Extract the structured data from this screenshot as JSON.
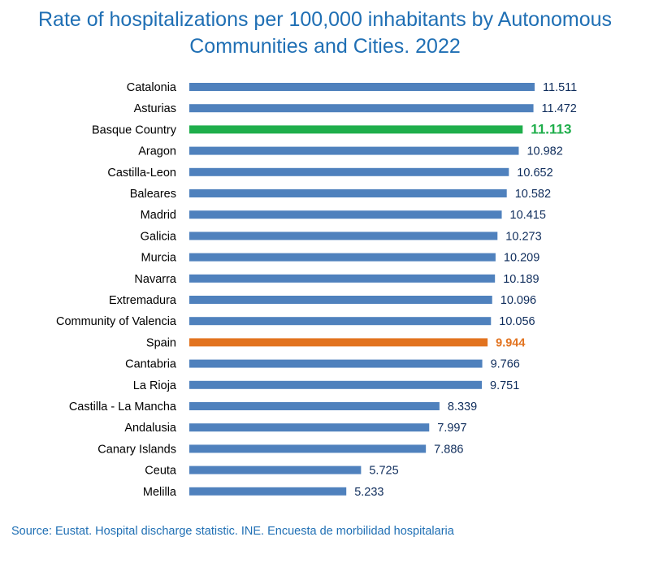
{
  "chart_data": {
    "type": "bar",
    "orientation": "horizontal",
    "title_line1": "Rate of hospitalizations per 100,000 inhabitants by Autonomous",
    "title_line2": "Communities and Cities. 2022",
    "categories": [
      "Catalonia",
      "Asturias",
      "Basque Country",
      "Aragon",
      "Castilla-Leon",
      "Baleares",
      "Madrid",
      "Galicia",
      "Murcia",
      "Navarra",
      "Extremadura",
      "Community of Valencia",
      "Spain",
      "Cantabria",
      "La Rioja",
      "Castilla - La Mancha",
      "Andalusia",
      "Canary Islands",
      "Ceuta",
      "Melilla"
    ],
    "values": [
      11511,
      11472,
      11113,
      10982,
      10652,
      10582,
      10415,
      10273,
      10209,
      10189,
      10096,
      10056,
      9944,
      9766,
      9751,
      8339,
      7997,
      7886,
      5725,
      5233
    ],
    "value_labels": [
      "11.511",
      "11.472",
      "11.113",
      "10.982",
      "10.652",
      "10.582",
      "10.415",
      "10.273",
      "10.209",
      "10.189",
      "10.096",
      "10.056",
      "9.944",
      "9.766",
      "9.751",
      "8.339",
      "7.997",
      "7.886",
      "5.725",
      "5.233"
    ],
    "highlights": {
      "Basque Country": "#1fae4b",
      "Spain": "#e2731f"
    },
    "default_color": "#4f81bd",
    "xlim": [
      0,
      11511
    ],
    "xlabel": "",
    "ylabel": "",
    "grid": false,
    "legend": "none"
  },
  "source": "Source: Eustat. Hospital discharge statistic. INE. Encuesta de morbilidad hospitalaria"
}
